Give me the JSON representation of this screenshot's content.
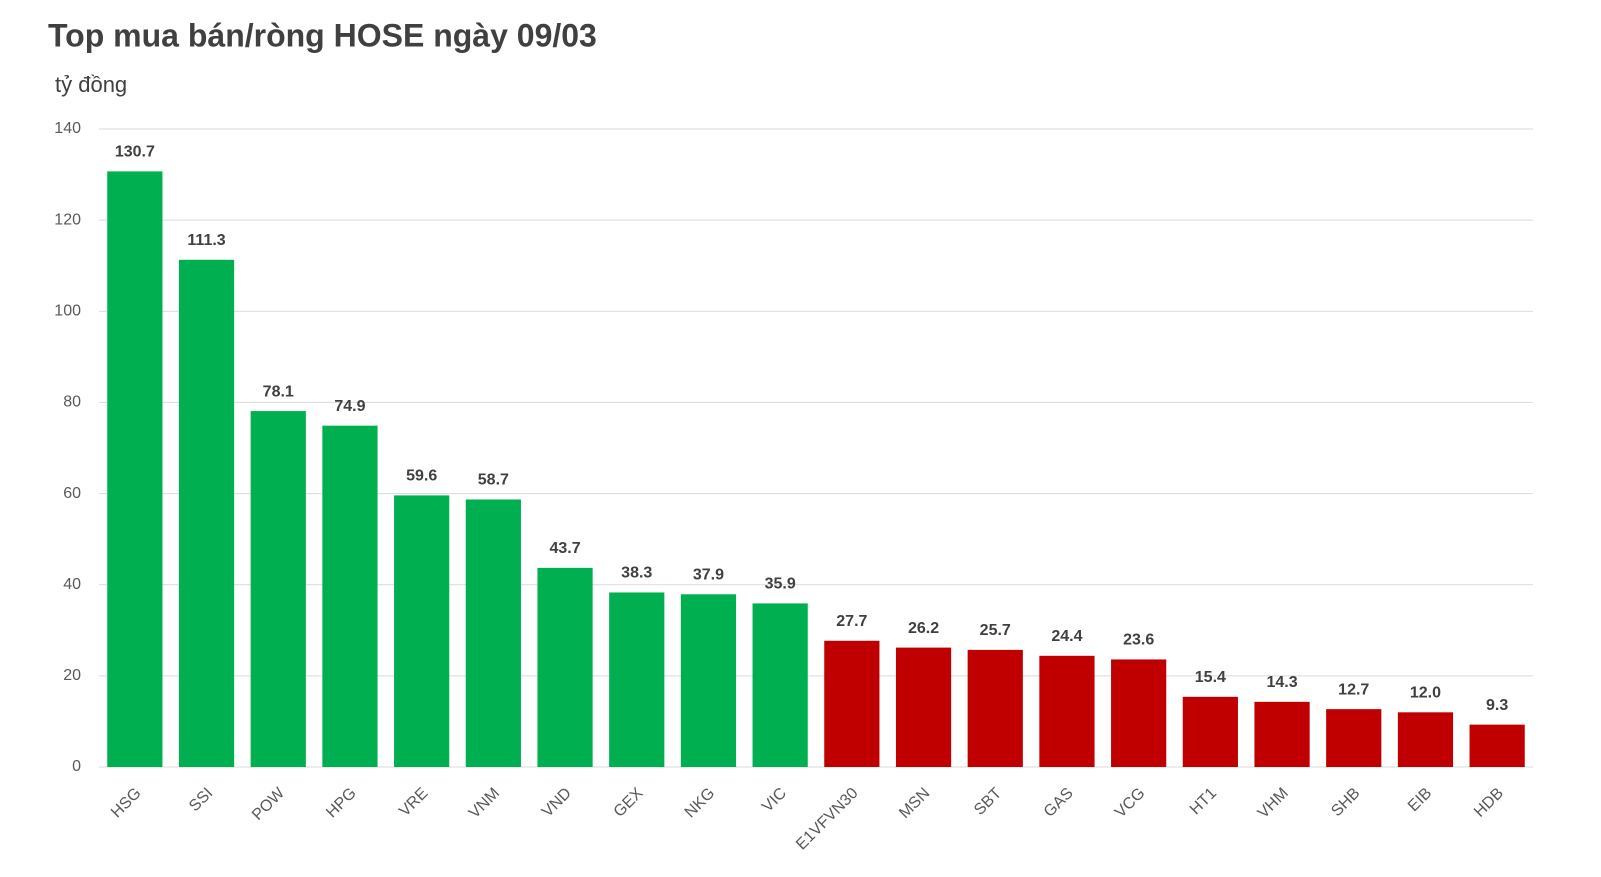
{
  "chart_data": {
    "type": "bar",
    "title": "Top mua bán/ròng HOSE ngày 09/03",
    "y_axis_label": "tỷ đồng",
    "categories": [
      "HSG",
      "SSI",
      "POW",
      "HPG",
      "VRE",
      "VNM",
      "VND",
      "GEX",
      "NKG",
      "VIC",
      "E1VFVN30",
      "MSN",
      "SBT",
      "GAS",
      "VCG",
      "HT1",
      "VHM",
      "SHB",
      "EIB",
      "HDB"
    ],
    "values": [
      130.7,
      111.3,
      78.1,
      74.9,
      59.6,
      58.7,
      43.7,
      38.3,
      37.9,
      35.9,
      27.7,
      26.2,
      25.7,
      24.4,
      23.6,
      15.4,
      14.3,
      12.7,
      12.0,
      9.3
    ],
    "value_labels": [
      "130.7",
      "111.3",
      "78.1",
      "74.9",
      "59.6",
      "58.7",
      "43.7",
      "38.3",
      "37.9",
      "35.9",
      "27.7",
      "26.2",
      "25.7",
      "24.4",
      "23.6",
      "15.4",
      "14.3",
      "12.7",
      "12.0",
      "9.3"
    ],
    "colors": [
      "#00b050",
      "#00b050",
      "#00b050",
      "#00b050",
      "#00b050",
      "#00b050",
      "#00b050",
      "#00b050",
      "#00b050",
      "#00b050",
      "#c00000",
      "#c00000",
      "#c00000",
      "#c00000",
      "#c00000",
      "#c00000",
      "#c00000",
      "#c00000",
      "#c00000",
      "#c00000"
    ],
    "ylim": [
      0,
      140
    ],
    "yticks": [
      0,
      20,
      40,
      60,
      80,
      100,
      120,
      140
    ],
    "grid": true
  }
}
